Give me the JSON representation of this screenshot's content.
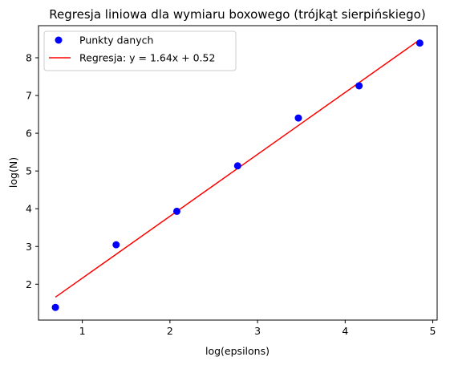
{
  "chart_data": {
    "type": "scatter",
    "title": "Regresja liniowa dla wymiaru boxowego (trójkąt sierpińskiego)",
    "xlabel": "log(epsilons)",
    "ylabel": "log(N)",
    "xlim": [
      0.5,
      5.05
    ],
    "ylim": [
      1.05,
      8.85
    ],
    "xticks": [
      1,
      2,
      3,
      4,
      5
    ],
    "yticks": [
      2,
      3,
      4,
      5,
      6,
      7,
      8
    ],
    "grid": false,
    "legend_position": "upper-left",
    "series": [
      {
        "name": "Punkty danych",
        "kind": "scatter",
        "color": "#0000ff",
        "x": [
          0.693,
          1.386,
          2.079,
          2.773,
          3.466,
          4.159,
          4.852
        ],
        "y": [
          1.386,
          3.045,
          3.932,
          5.136,
          6.404,
          7.257,
          8.389
        ]
      },
      {
        "name": "Regresja: y = 1.64x + 0.52",
        "kind": "line",
        "color": "#ff0000",
        "x": [
          0.693,
          4.852
        ],
        "y": [
          1.657,
          8.478
        ]
      }
    ]
  }
}
